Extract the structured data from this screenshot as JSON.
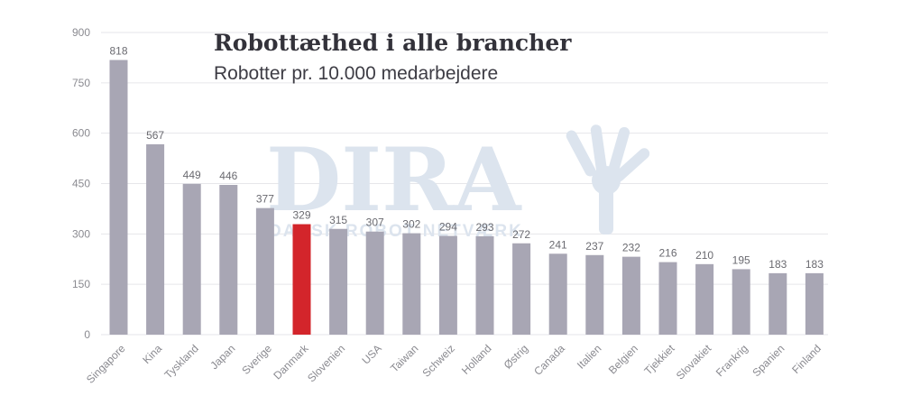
{
  "chart_data": {
    "type": "bar",
    "title": "Robottæthed i alle brancher",
    "subtitle": "Robotter pr. 10.000 medarbejdere",
    "categories": [
      "Singapore",
      "Kina",
      "Tyskland",
      "Japan",
      "Sverige",
      "Danmark",
      "Slovenien",
      "USA",
      "Taiwan",
      "Schweiz",
      "Holland",
      "Østrig",
      "Canada",
      "Italien",
      "Belgien",
      "Tjekkiet",
      "Slovakiet",
      "Frankrig",
      "Spanien",
      "Finland"
    ],
    "values": [
      818,
      567,
      449,
      446,
      377,
      329,
      315,
      307,
      302,
      294,
      293,
      272,
      241,
      237,
      232,
      216,
      210,
      195,
      183,
      183
    ],
    "ylim": [
      0,
      900
    ],
    "yticks": [
      0,
      150,
      300,
      450,
      600,
      750,
      900
    ],
    "grid": true,
    "highlight_category": "Danmark",
    "colors": {
      "bar": "#a8a6b4",
      "highlight": "#d3252b",
      "grid": "#e6e6ea"
    }
  },
  "watermark": {
    "logo_text": "DIRA",
    "tagline": "DANSK ROBOT NETVÆRK"
  }
}
